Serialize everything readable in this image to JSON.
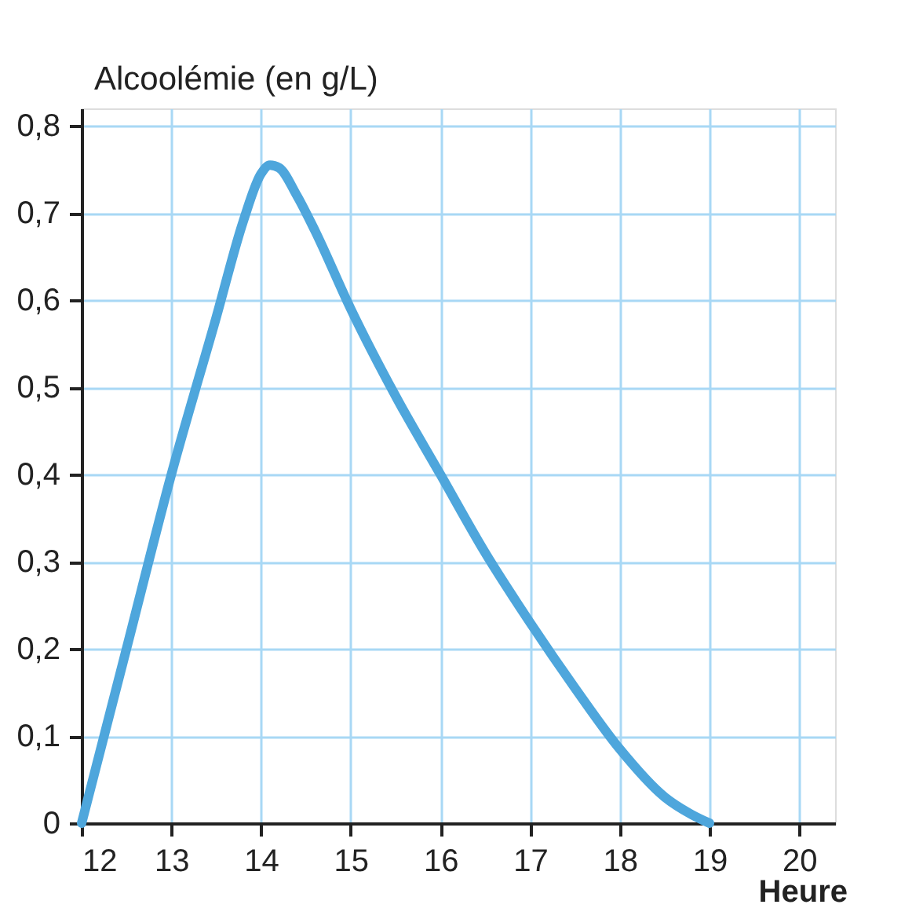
{
  "chart_data": {
    "type": "line",
    "ylabel": "Alcoolémie (en g/L)",
    "xlabel": "Heure",
    "x": [
      12,
      12.5,
      13,
      13.5,
      13.8,
      14,
      14.1,
      14.2,
      14.4,
      14.6,
      15,
      15.5,
      16,
      16.5,
      17,
      17.5,
      18,
      18.5,
      18.8,
      19
    ],
    "series": [
      {
        "color": "#4ea6dc",
        "values": [
          0,
          0.2,
          0.4,
          0.58,
          0.69,
          0.745,
          0.755,
          0.752,
          0.72,
          0.68,
          0.59,
          0.49,
          0.4,
          0.31,
          0.23,
          0.155,
          0.085,
          0.03,
          0.01,
          0
        ]
      }
    ],
    "xlim": [
      12,
      20.4
    ],
    "ylim": [
      0,
      0.82
    ],
    "xticks": [
      12,
      13,
      14,
      15,
      16,
      17,
      18,
      19,
      20
    ],
    "yticks": [
      {
        "value": 0,
        "label": "0"
      },
      {
        "value": 0.1,
        "label": "0,1"
      },
      {
        "value": 0.2,
        "label": "0,2"
      },
      {
        "value": 0.3,
        "label": "0,3"
      },
      {
        "value": 0.4,
        "label": "0,4"
      },
      {
        "value": 0.5,
        "label": "0,5"
      },
      {
        "value": 0.6,
        "label": "0,6"
      },
      {
        "value": 0.7,
        "label": "0,7"
      },
      {
        "value": 0.8,
        "label": "0,8"
      }
    ],
    "grid": true,
    "marker": "none",
    "line_style": "solid"
  }
}
